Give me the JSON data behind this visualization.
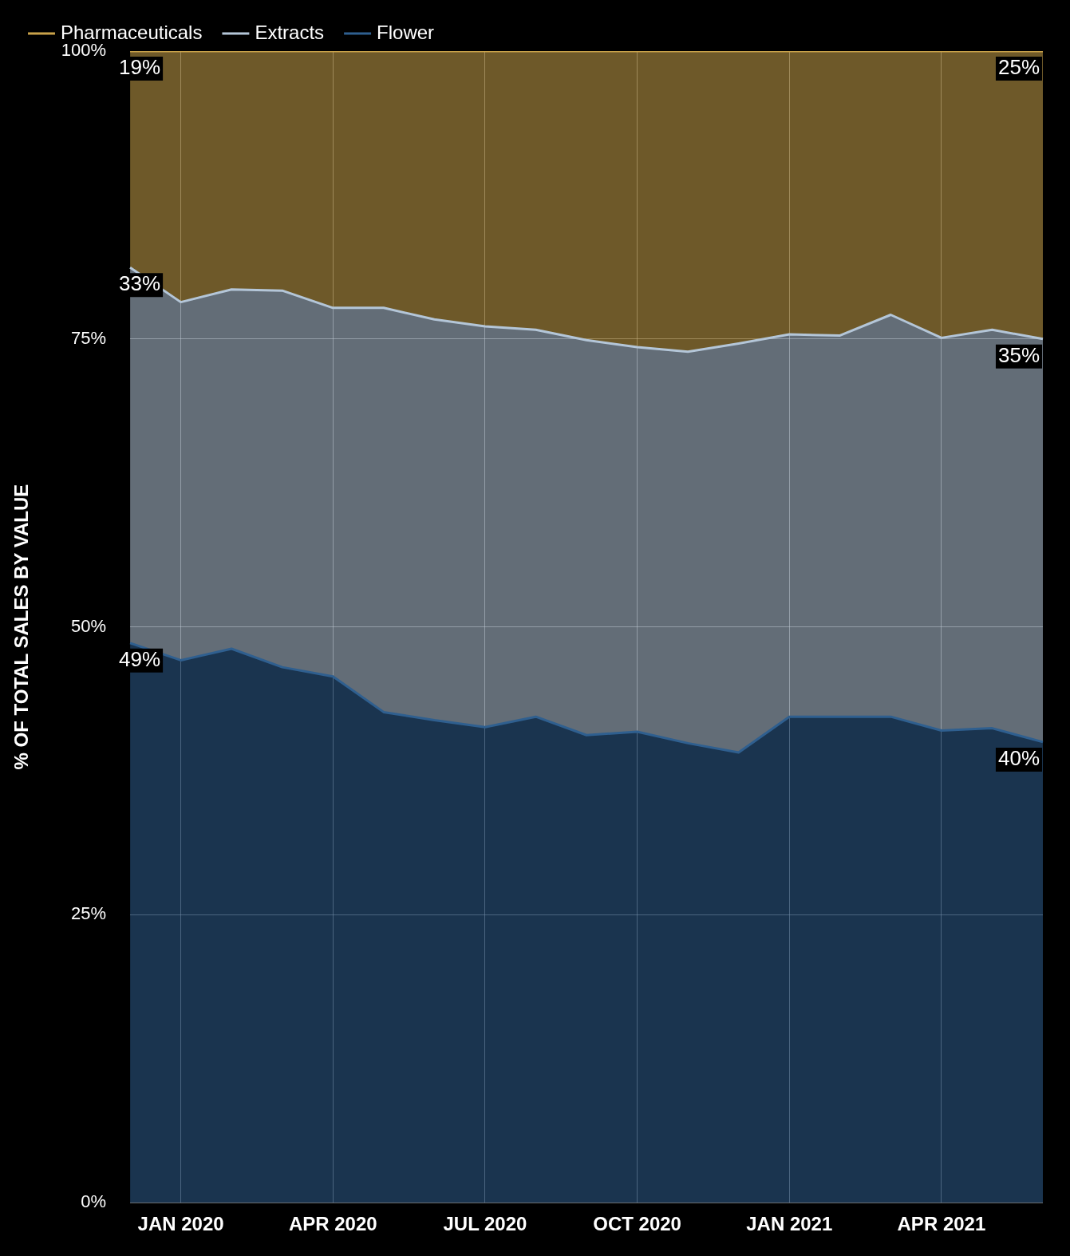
{
  "chart_data": {
    "type": "area",
    "stacked": true,
    "ylabel": "% OF TOTAL SALES BY VALUE",
    "categories": [
      null,
      "JAN 2020",
      null,
      null,
      "APR 2020",
      null,
      null,
      "JUL 2020",
      null,
      null,
      "OCT 2020",
      null,
      null,
      "JAN 2021",
      null,
      null,
      "APR 2021",
      null,
      null
    ],
    "series": [
      {
        "name": "Flower",
        "color": "#2f5f8f",
        "values": [
          48.6,
          47.1,
          48.1,
          46.5,
          45.7,
          42.6,
          41.9,
          41.3,
          42.2,
          40.6,
          40.9,
          39.9,
          39.1,
          42.2,
          42.2,
          42.2,
          41.0,
          41.2,
          40
        ],
        "value_labels": [
          "49%",
          null,
          null,
          null,
          null,
          null,
          null,
          null,
          null,
          null,
          null,
          null,
          null,
          null,
          null,
          null,
          null,
          null,
          "40%"
        ]
      },
      {
        "name": "Extracts",
        "color": "#b4c6d8",
        "values": [
          32.6,
          31.1,
          31.2,
          32.7,
          32.0,
          35.1,
          34.8,
          34.8,
          33.6,
          34.3,
          33.4,
          34.0,
          35.5,
          33.2,
          33.1,
          34.9,
          34.1,
          34.6,
          35
        ],
        "value_labels": [
          "33%",
          null,
          null,
          null,
          null,
          null,
          null,
          null,
          null,
          null,
          null,
          null,
          null,
          null,
          null,
          null,
          null,
          null,
          "35%"
        ]
      },
      {
        "name": "Pharmaceuticals",
        "color": "#c9a24a",
        "values": [
          18.8,
          21.8,
          20.7,
          20.8,
          22.3,
          22.3,
          23.3,
          23.9,
          24.2,
          25.1,
          25.7,
          26.1,
          25.4,
          24.6,
          24.7,
          22.9,
          24.9,
          24.2,
          25
        ],
        "value_labels": [
          "19%",
          null,
          null,
          null,
          null,
          null,
          null,
          null,
          null,
          null,
          null,
          null,
          null,
          null,
          null,
          null,
          null,
          null,
          "25%"
        ]
      }
    ],
    "ylim": [
      0,
      100
    ],
    "yticks": [
      {
        "value": 0,
        "label": "0%"
      },
      {
        "value": 25,
        "label": "25%"
      },
      {
        "value": 50,
        "label": "50%"
      },
      {
        "value": 75,
        "label": "75%"
      },
      {
        "value": 100,
        "label": "100%"
      }
    ],
    "grid": true,
    "legend": "top left",
    "marker": "none"
  }
}
